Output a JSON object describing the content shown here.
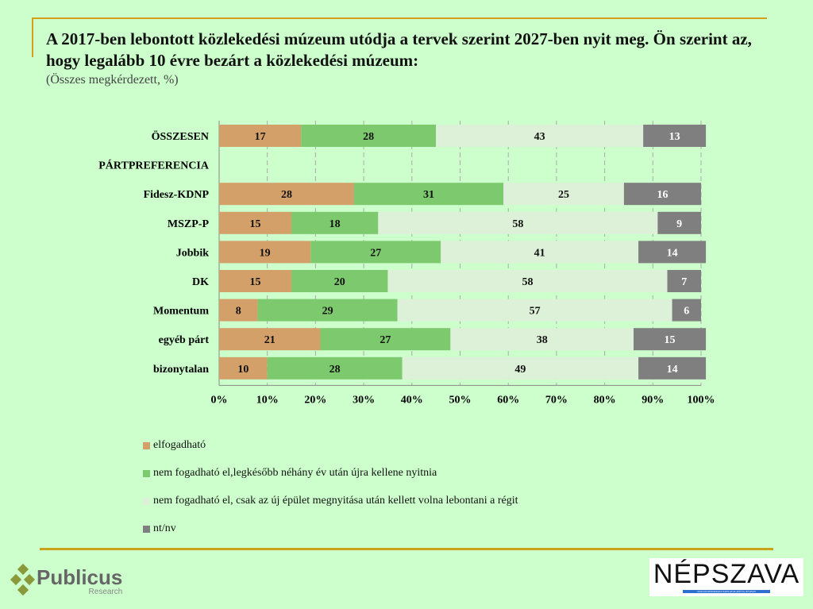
{
  "header": {
    "title": "A 2017-ben lebontott közlekedési múzeum utódja a tervek szerint 2027-ben nyit meg. Ön szerint az, hogy legalább 10 évre bezárt a közlekedési múzeum:",
    "subtitle": "(Összes megkérdezett, %)"
  },
  "chart_data": {
    "type": "bar",
    "stacked": true,
    "orientation": "horizontal",
    "categories": [
      "ÖSSZESEN",
      "PÁRTPREFERENCIA",
      "Fidesz-KDNP",
      "MSZP-P",
      "Jobbik",
      "DK",
      "Momentum",
      "egyéb párt",
      "bizonytalan"
    ],
    "series": [
      {
        "name": "elfogadható",
        "color": "#d4a06a",
        "values": [
          17,
          null,
          28,
          15,
          19,
          15,
          8,
          21,
          10
        ]
      },
      {
        "name": "nem fogadható el,legkésőbb néhány év után újra kellene nyitnia",
        "color": "#7dc96e",
        "values": [
          28,
          null,
          31,
          18,
          27,
          20,
          29,
          27,
          28
        ]
      },
      {
        "name": "nem fogadható el, csak az új épület megnyitása után kellett volna lebontani a régit",
        "color": "#ddf0d8",
        "values": [
          43,
          null,
          25,
          58,
          41,
          58,
          57,
          38,
          49
        ]
      },
      {
        "name": "nt/nv",
        "color": "#7f7f7f",
        "values": [
          13,
          null,
          16,
          9,
          14,
          7,
          6,
          15,
          14
        ]
      }
    ],
    "xticks": [
      "0%",
      "10%",
      "20%",
      "30%",
      "40%",
      "50%",
      "60%",
      "70%",
      "80%",
      "90%",
      "100%"
    ],
    "xlim": [
      0,
      100
    ],
    "legend": "bottom"
  },
  "footer": {
    "publicus": "Publicus",
    "research": "Research",
    "nepszava": "NÉPSZAVA",
    "nepszava_tag": "SZOCIÁLDEMOKRATA NAPILAP  ALAPÍTVA 1873-BAN"
  }
}
